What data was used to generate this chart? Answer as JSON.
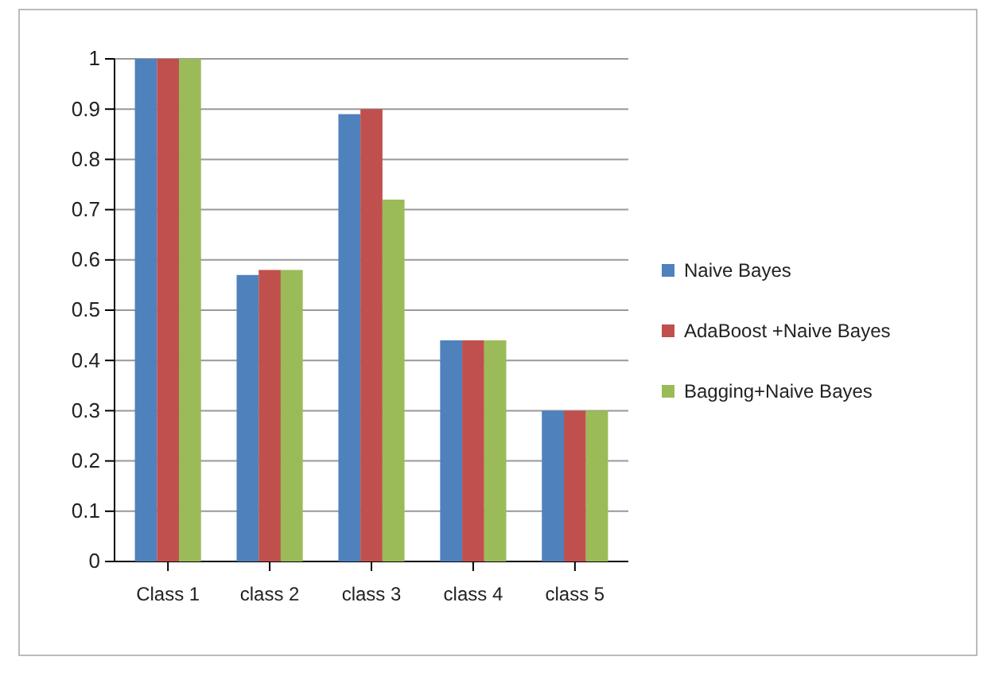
{
  "chart_data": {
    "type": "bar",
    "categories": [
      "Class 1",
      "class 2",
      "class 3",
      "class 4",
      "class 5"
    ],
    "series": [
      {
        "name": "Naive Bayes",
        "color": "#4f81bd",
        "values": [
          1,
          0.57,
          0.89,
          0.44,
          0.3
        ]
      },
      {
        "name": "AdaBoost +Naive Bayes",
        "color": "#c0504d",
        "values": [
          1,
          0.58,
          0.9,
          0.44,
          0.3
        ]
      },
      {
        "name": "Bagging+Naive Bayes",
        "color": "#9bbb59",
        "values": [
          1,
          0.58,
          0.72,
          0.44,
          0.3
        ]
      }
    ],
    "ylim": [
      0,
      1
    ],
    "yticks": [
      0,
      0.1,
      0.2,
      0.3,
      0.4,
      0.5,
      0.6,
      0.7,
      0.8,
      0.9,
      1
    ],
    "grid": "y",
    "legend": "right"
  }
}
